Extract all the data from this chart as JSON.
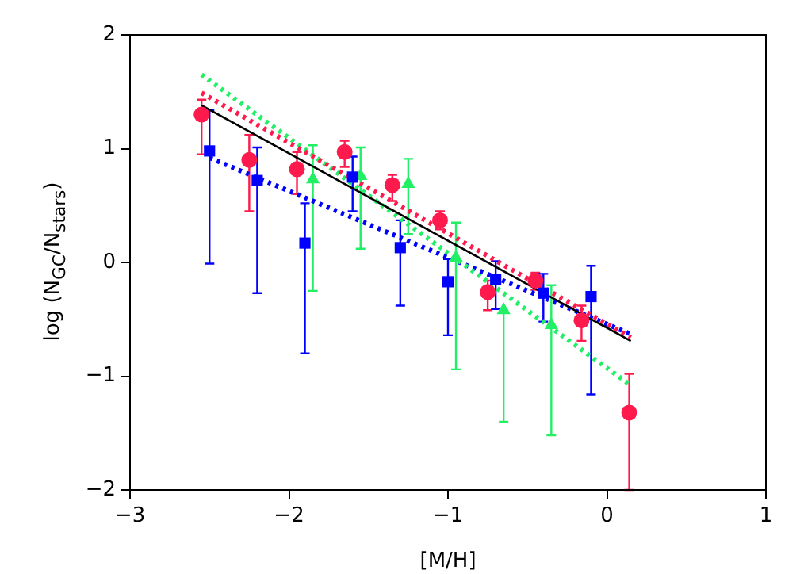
{
  "chart_data": {
    "type": "scatter",
    "xlabel": "[M/H]",
    "ylabel": "log (N$_{GC}$/N$_{stars}$)",
    "xlim": [
      -3,
      1
    ],
    "ylim": [
      -2,
      2
    ],
    "xticks": [
      {
        "value": -3,
        "label": "−3"
      },
      {
        "value": -2,
        "label": "−2"
      },
      {
        "value": -1,
        "label": "−1"
      },
      0,
      1
    ],
    "yticks": [
      {
        "value": -2,
        "label": "−2"
      },
      {
        "value": -1,
        "label": "−1"
      },
      0,
      1,
      2
    ],
    "grid": false,
    "legend": false,
    "series": [
      {
        "marker": "circle",
        "color": "#ff1a4d",
        "x": [
          -2.55,
          -2.25,
          -1.95,
          -1.65,
          -1.35,
          -1.05,
          -0.75,
          -0.45,
          -0.16,
          0.14
        ],
        "values": [
          1.3,
          0.9,
          0.82,
          0.97,
          0.68,
          0.37,
          -0.26,
          -0.16,
          -0.51,
          -1.32
        ],
        "errors": [
          [
            0.95,
            1.43
          ],
          [
            0.45,
            1.12
          ],
          [
            0.6,
            0.97
          ],
          [
            0.84,
            1.07
          ],
          [
            0.54,
            0.77
          ],
          [
            0.29,
            0.45
          ],
          [
            -0.42,
            -0.16
          ],
          [
            -0.24,
            -0.09
          ],
          [
            -0.69,
            -0.38
          ],
          [
            -2,
            -0.98
          ]
        ]
      },
      {
        "marker": "square",
        "color": "#0000ff",
        "x": [
          -2.5,
          -2.2,
          -1.9,
          -1.6,
          -1.3,
          -1.0,
          -0.7,
          -0.4,
          -0.1
        ],
        "values": [
          0.98,
          0.72,
          0.17,
          0.75,
          0.13,
          -0.17,
          -0.15,
          -0.27,
          -0.3
        ],
        "errors": [
          [
            -0.01,
            1.34
          ],
          [
            -0.27,
            1.01
          ],
          [
            -0.8,
            0.52
          ],
          [
            0.45,
            0.93
          ],
          [
            -0.38,
            0.37
          ],
          [
            -0.64,
            0.03
          ],
          [
            -0.41,
            0.01
          ],
          [
            -0.52,
            -0.1
          ],
          [
            -1.16,
            -0.03
          ]
        ]
      },
      {
        "marker": "triangle",
        "color": "#22ee66",
        "x": [
          -1.85,
          -1.55,
          -1.25,
          -0.95,
          -0.65,
          -0.35
        ],
        "values": [
          0.73,
          0.76,
          0.69,
          0.04,
          -0.42,
          -0.55
        ],
        "errors": [
          [
            -0.25,
            1.03
          ],
          [
            0.12,
            1.01
          ],
          [
            0.25,
            0.91
          ],
          [
            -0.94,
            0.35
          ],
          [
            -1.4,
            -0.42
          ],
          [
            -1.52,
            -0.2
          ]
        ]
      },
      {
        "type": "line",
        "line_style": "solid",
        "marker": "none",
        "color": "#000000",
        "x": [
          -2.55,
          0.15
        ],
        "values": [
          1.38,
          -0.69
        ]
      },
      {
        "type": "line",
        "line_style": "dotted",
        "marker": "none",
        "color": "#ff1a4d",
        "x": [
          -2.55,
          0.15
        ],
        "values": [
          1.49,
          -0.66
        ]
      },
      {
        "type": "line",
        "line_style": "dotted",
        "marker": "none",
        "color": "#22ee66",
        "x": [
          -2.55,
          0.15
        ],
        "values": [
          1.65,
          -1.08
        ]
      },
      {
        "type": "line",
        "line_style": "dotted",
        "marker": "none",
        "color": "#0000ff",
        "x": [
          -2.5,
          0.15
        ],
        "values": [
          0.92,
          -0.63
        ]
      }
    ]
  }
}
